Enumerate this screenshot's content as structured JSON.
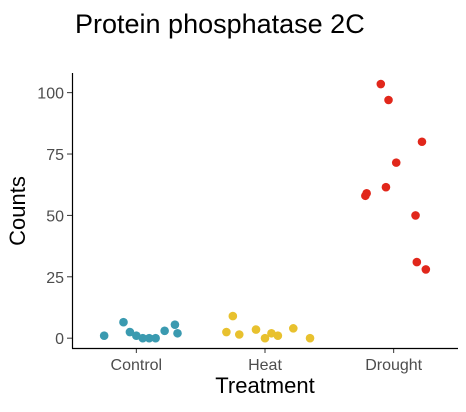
{
  "chart_data": {
    "type": "scatter",
    "title": "Protein phosphatase 2C",
    "xlabel": "Treatment",
    "ylabel": "Counts",
    "categories": [
      "Control",
      "Heat",
      "Drought"
    ],
    "ylim": [
      -4,
      108
    ],
    "yticks": [
      0,
      25,
      50,
      75,
      100
    ],
    "grid": false,
    "legend": "none",
    "series": [
      {
        "category": "Control",
        "color": "#3a9ab0",
        "points": [
          {
            "jitter": -0.25,
            "y": 1
          },
          {
            "jitter": -0.1,
            "y": 6.5
          },
          {
            "jitter": -0.05,
            "y": 2.5
          },
          {
            "jitter": 0.0,
            "y": 1
          },
          {
            "jitter": 0.05,
            "y": 0
          },
          {
            "jitter": 0.1,
            "y": 0
          },
          {
            "jitter": 0.15,
            "y": 0
          },
          {
            "jitter": 0.22,
            "y": 3
          },
          {
            "jitter": 0.3,
            "y": 5.5
          },
          {
            "jitter": 0.32,
            "y": 2
          }
        ]
      },
      {
        "category": "Heat",
        "color": "#e8c12e",
        "points": [
          {
            "jitter": -0.3,
            "y": 2.5
          },
          {
            "jitter": -0.25,
            "y": 9
          },
          {
            "jitter": -0.2,
            "y": 1.5
          },
          {
            "jitter": -0.07,
            "y": 3.5
          },
          {
            "jitter": 0.0,
            "y": 0
          },
          {
            "jitter": 0.05,
            "y": 2
          },
          {
            "jitter": 0.1,
            "y": 1
          },
          {
            "jitter": 0.22,
            "y": 4
          },
          {
            "jitter": 0.35,
            "y": 0
          }
        ]
      },
      {
        "category": "Drought",
        "color": "#e1271b",
        "points": [
          {
            "jitter": -0.22,
            "y": 58
          },
          {
            "jitter": -0.21,
            "y": 59
          },
          {
            "jitter": -0.1,
            "y": 103.5
          },
          {
            "jitter": -0.06,
            "y": 61.5
          },
          {
            "jitter": -0.04,
            "y": 97
          },
          {
            "jitter": 0.02,
            "y": 71.5
          },
          {
            "jitter": 0.17,
            "y": 50
          },
          {
            "jitter": 0.18,
            "y": 31
          },
          {
            "jitter": 0.22,
            "y": 80
          },
          {
            "jitter": 0.25,
            "y": 28
          }
        ]
      }
    ]
  }
}
